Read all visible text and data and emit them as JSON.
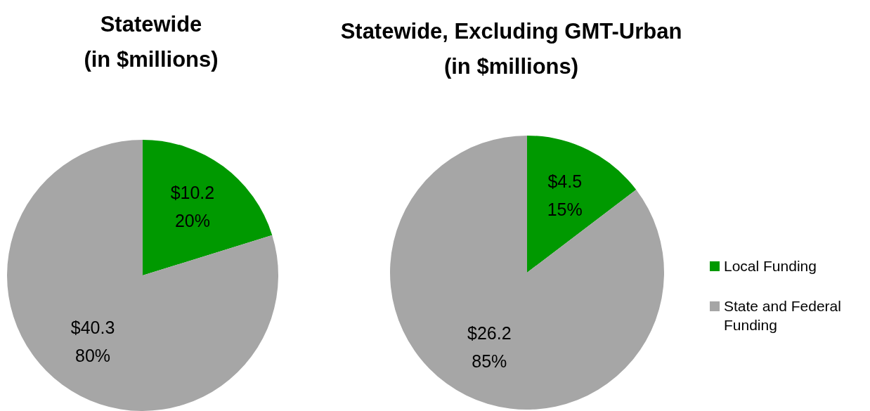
{
  "chart_data": [
    {
      "type": "pie",
      "title": "Statewide\n(in $millions)",
      "categories": [
        null,
        null
      ],
      "values": [
        10.2,
        40.3
      ],
      "colors": [
        "#009900",
        "#a6a6a6"
      ],
      "value_labels": [
        "$10.2\n20%",
        "$40.3\n80%"
      ],
      "legend": false
    },
    {
      "type": "pie",
      "title": "Statewide, Excluding GMT-Urban\n(in $millions)",
      "categories": [
        "Local Funding",
        "State and Federal Funding"
      ],
      "values": [
        4.5,
        26.2
      ],
      "colors": [
        "#009900",
        "#a6a6a6"
      ],
      "value_labels": [
        "$4.5\n15%",
        "$26.2\n85%"
      ],
      "legend": "right"
    }
  ]
}
